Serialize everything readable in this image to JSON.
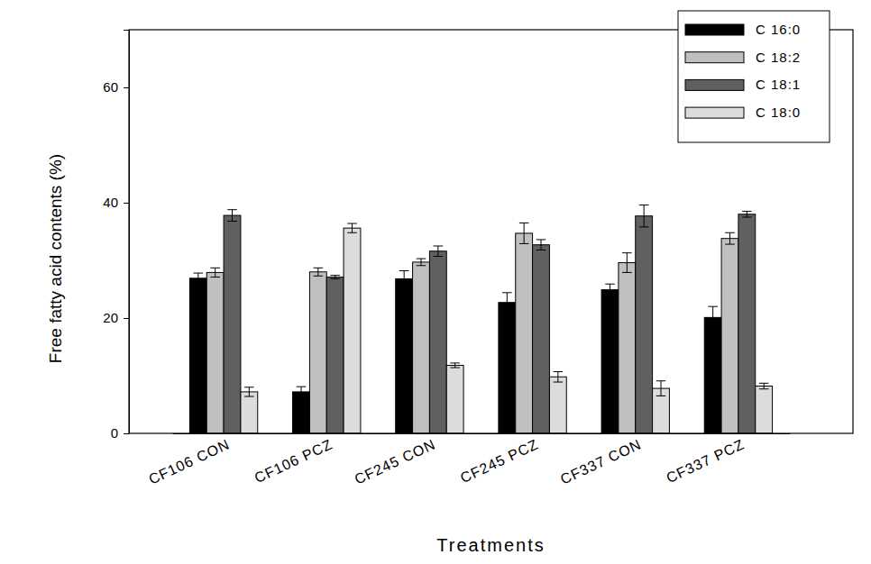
{
  "chart_data": {
    "type": "bar",
    "x_label": "Treatments",
    "y_label": "Free fatty acid contents (%)",
    "categories": [
      "CF106 CON",
      "CF106 PCZ",
      "CF245 CON",
      "CF245 PCZ",
      "CF337 CON",
      "CF337 PCZ"
    ],
    "series": [
      {
        "name": "C 16:0",
        "color": "#000000",
        "values": [
          26.9,
          7.2,
          26.8,
          22.7,
          24.9,
          20.1
        ],
        "errors": [
          0.9,
          0.9,
          1.4,
          1.7,
          1.0,
          1.9
        ]
      },
      {
        "name": "C 18:2",
        "color": "#c0c0c0",
        "values": [
          27.9,
          28.0,
          29.7,
          34.7,
          29.6,
          33.8
        ],
        "errors": [
          0.8,
          0.7,
          0.6,
          1.8,
          1.7,
          1.0
        ]
      },
      {
        "name": "C 18:1",
        "color": "#606060",
        "values": [
          37.8,
          27.1,
          31.6,
          32.7,
          37.7,
          38.0
        ],
        "errors": [
          1.0,
          0.3,
          0.9,
          0.9,
          1.9,
          0.5
        ]
      },
      {
        "name": "C 18:0",
        "color": "#dcdcdc",
        "values": [
          7.2,
          35.6,
          11.8,
          9.8,
          7.8,
          8.2
        ],
        "errors": [
          0.8,
          0.8,
          0.4,
          0.9,
          1.3,
          0.5
        ]
      }
    ],
    "ylim": [
      0,
      70
    ],
    "yticks": [
      0,
      20,
      40,
      60
    ],
    "legend": "upper right",
    "grid": false
  }
}
